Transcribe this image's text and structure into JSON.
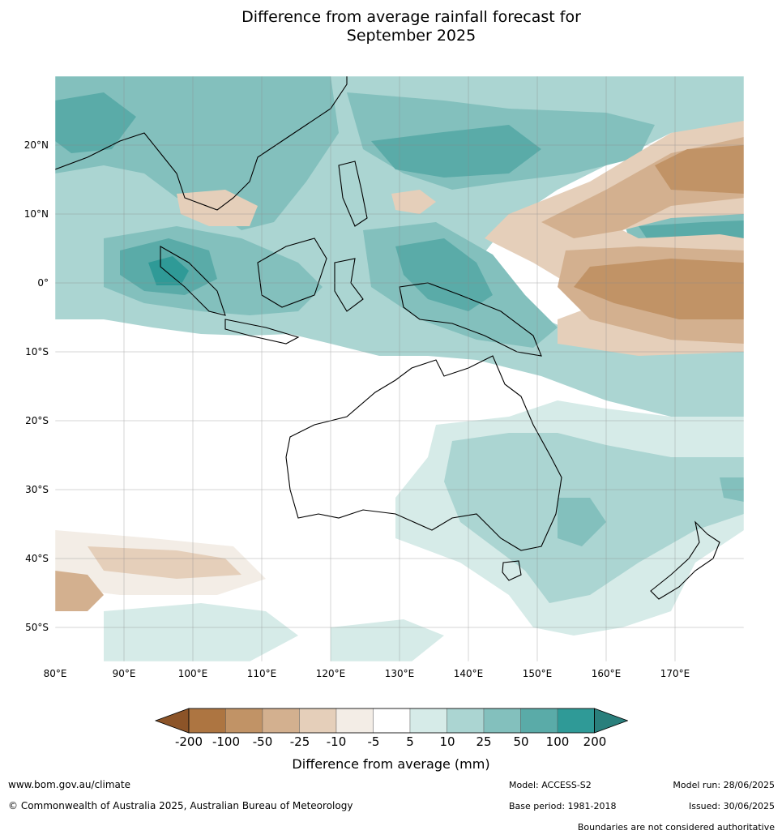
{
  "title_line1": "Difference from average rainfall forecast for",
  "title_line2": "September 2025",
  "lat_labels": [
    "20°N",
    "10°N",
    "0°",
    "10°S",
    "20°S",
    "30°S",
    "40°S",
    "50°S"
  ],
  "lon_labels": [
    "80°E",
    "90°E",
    "100°E",
    "110°E",
    "120°E",
    "130°E",
    "140°E",
    "150°E",
    "160°E",
    "170°E"
  ],
  "colorbar": {
    "label": "Difference from average (mm)",
    "ticks": [
      "-200",
      "-100",
      "-50",
      "-25",
      "-10",
      "-5",
      "5",
      "10",
      "25",
      "50",
      "100",
      "200"
    ],
    "colors": [
      "#8c5428",
      "#ad7541",
      "#c19366",
      "#d3b08f",
      "#e5cfba",
      "#f3ede6",
      "#ffffff",
      "#d6ebe8",
      "#abd5d2",
      "#83c0bd",
      "#5aaba8",
      "#2f9a97",
      "#2a7f7c"
    ]
  },
  "footer": {
    "website": "www.bom.gov.au/climate",
    "copyright": "© Commonwealth of Australia 2025, Australian Bureau of Meteorology",
    "model": "Model: ACCESS-S2",
    "model_run": "Model run: 28/06/2025",
    "base_period": "Base period: 1981-2018",
    "issued": "Issued: 30/06/2025",
    "boundaries": "Boundaries are not considered authoritative"
  }
}
